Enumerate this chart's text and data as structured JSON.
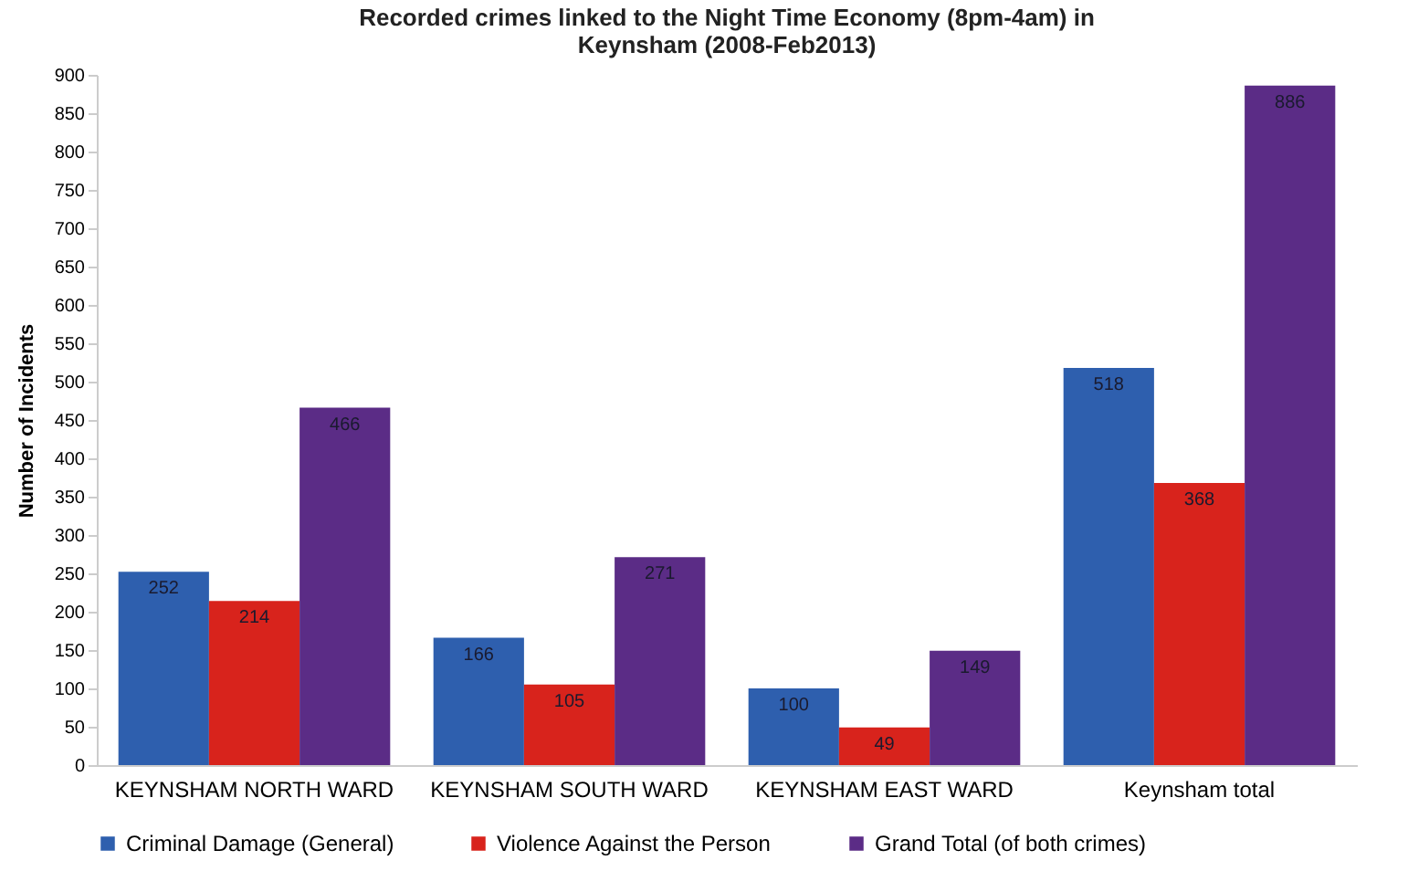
{
  "chart_data": {
    "type": "bar",
    "title": [
      "Recorded crimes linked to the Night Time Economy (8pm-4am) in",
      "Keynsham (2008-Feb2013)"
    ],
    "ylabel": "Number of Incidents",
    "categories": [
      "KEYNSHAM NORTH WARD",
      "KEYNSHAM SOUTH WARD",
      "KEYNSHAM EAST WARD",
      "Keynsham total"
    ],
    "series": [
      {
        "name": "Criminal Damage (General)",
        "color": "#2e5fae",
        "values": [
          252,
          166,
          100,
          518
        ]
      },
      {
        "name": "Violence Against the Person",
        "color": "#d8231c",
        "values": [
          214,
          105,
          49,
          368
        ]
      },
      {
        "name": "Grand Total (of both crimes)",
        "color": "#5b2c86",
        "values": [
          466,
          271,
          149,
          886
        ]
      }
    ],
    "ylim": [
      0,
      900
    ],
    "yticks": [
      0,
      50,
      100,
      150,
      200,
      250,
      300,
      350,
      400,
      450,
      500,
      550,
      600,
      650,
      700,
      750,
      800,
      850,
      900
    ],
    "data_labels": true,
    "grid": false,
    "legend": "bottom"
  }
}
